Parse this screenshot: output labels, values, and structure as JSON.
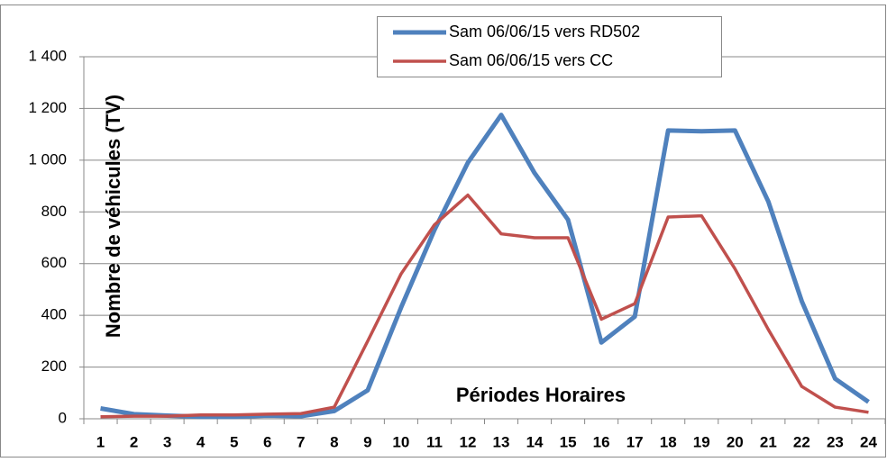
{
  "chart_data": {
    "type": "line",
    "y_label": "Nombre de véhicules (TV)",
    "x_label": "Périodes Horaires",
    "categories": [
      "1",
      "2",
      "3",
      "4",
      "5",
      "6",
      "7",
      "8",
      "9",
      "10",
      "11",
      "12",
      "13",
      "14",
      "15",
      "16",
      "17",
      "18",
      "19",
      "20",
      "21",
      "22",
      "23",
      "24"
    ],
    "series": [
      {
        "name": "Sam 06/06/15 vers RD502",
        "color": "#4f81bd",
        "width": 5,
        "values": [
          40,
          18,
          12,
          8,
          8,
          12,
          10,
          30,
          110,
          430,
          730,
          990,
          1175,
          950,
          770,
          295,
          395,
          1115,
          1112,
          1115,
          840,
          455,
          155,
          65
        ]
      },
      {
        "name": "Sam 06/06/15 vers CC",
        "color": "#c0504d",
        "width": 3.5,
        "values": [
          8,
          10,
          10,
          15,
          15,
          18,
          20,
          45,
          300,
          560,
          750,
          865,
          715,
          700,
          700,
          385,
          445,
          780,
          785,
          580,
          345,
          125,
          45,
          25
        ]
      }
    ],
    "ylim": [
      0,
      1400
    ],
    "yticks": [
      0,
      200,
      400,
      600,
      800,
      {
        "value": 1000,
        "label": "1 000"
      },
      {
        "value": 1200,
        "label": "1 200"
      },
      {
        "value": 1400,
        "label": "1 400"
      }
    ],
    "grid": true,
    "legend": "top"
  }
}
